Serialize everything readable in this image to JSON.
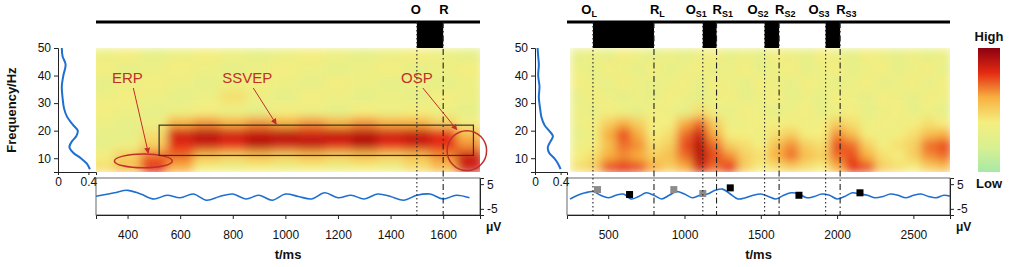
{
  "chart_data": [
    {
      "type": "heatmap",
      "xlabel": "t/ms",
      "ylabel": "Frequency/Hz",
      "xlim": [
        280,
        1740
      ],
      "xticks": [
        400,
        600,
        800,
        1000,
        1200,
        1400,
        1600
      ],
      "ylim": [
        5,
        50
      ],
      "yticks": [
        10,
        20,
        30,
        40,
        50
      ],
      "heatmap": {
        "x_edges": [
          250,
          350,
          450,
          550,
          650,
          750,
          850,
          950,
          1050,
          1150,
          1250,
          1350,
          1450,
          1550,
          1650,
          1750
        ],
        "y_edges": [
          5,
          9,
          13,
          17,
          21,
          25,
          30,
          35,
          40,
          45,
          50
        ],
        "values": [
          [
            0.45,
            0.55,
            0.8,
            0.6,
            0.4,
            0.35,
            0.4,
            0.35,
            0.4,
            0.35,
            0.4,
            0.35,
            0.45,
            0.55,
            0.85
          ],
          [
            0.4,
            0.5,
            0.7,
            0.7,
            0.55,
            0.5,
            0.55,
            0.5,
            0.55,
            0.5,
            0.55,
            0.5,
            0.55,
            0.65,
            0.85
          ],
          [
            0.3,
            0.35,
            0.5,
            0.8,
            0.85,
            0.8,
            0.9,
            0.85,
            0.88,
            0.82,
            0.9,
            0.8,
            0.85,
            0.8,
            0.65
          ],
          [
            0.3,
            0.3,
            0.45,
            0.85,
            0.9,
            0.85,
            0.88,
            0.9,
            0.85,
            0.88,
            0.9,
            0.85,
            0.88,
            0.8,
            0.55
          ],
          [
            0.35,
            0.3,
            0.35,
            0.6,
            0.65,
            0.6,
            0.65,
            0.6,
            0.65,
            0.6,
            0.65,
            0.6,
            0.6,
            0.5,
            0.4
          ],
          [
            0.4,
            0.35,
            0.3,
            0.35,
            0.4,
            0.35,
            0.3,
            0.4,
            0.35,
            0.3,
            0.4,
            0.35,
            0.4,
            0.35,
            0.3
          ],
          [
            0.35,
            0.4,
            0.35,
            0.3,
            0.35,
            0.45,
            0.35,
            0.3,
            0.4,
            0.35,
            0.3,
            0.35,
            0.3,
            0.4,
            0.35
          ],
          [
            0.3,
            0.35,
            0.4,
            0.35,
            0.3,
            0.35,
            0.4,
            0.35,
            0.3,
            0.4,
            0.35,
            0.3,
            0.35,
            0.3,
            0.35
          ],
          [
            0.4,
            0.3,
            0.35,
            0.4,
            0.35,
            0.3,
            0.35,
            0.4,
            0.35,
            0.3,
            0.35,
            0.4,
            0.3,
            0.35,
            0.4
          ],
          [
            0.35,
            0.4,
            0.3,
            0.35,
            0.4,
            0.35,
            0.3,
            0.35,
            0.4,
            0.35,
            0.3,
            0.35,
            0.4,
            0.35,
            0.3
          ]
        ]
      },
      "spectrum": {
        "type": "line",
        "color": "#1f6fd0",
        "xlim": [
          0,
          0.5
        ],
        "xticks": [
          0,
          0.4
        ],
        "f": [
          6,
          8,
          10,
          12,
          14,
          16,
          18,
          20,
          22,
          25,
          28,
          32,
          36,
          40,
          44,
          47,
          50
        ],
        "values": [
          0.42,
          0.38,
          0.3,
          0.2,
          0.15,
          0.18,
          0.24,
          0.26,
          0.2,
          0.12,
          0.08,
          0.06,
          0.05,
          0.07,
          0.1,
          0.06,
          0.05
        ]
      },
      "signal": {
        "type": "line",
        "color": "#1f6fd0",
        "unit": "μV",
        "ylim": [
          -7.5,
          7.5
        ],
        "yticks": [
          5,
          -5
        ],
        "x": [
          250,
          300,
          350,
          400,
          450,
          500,
          550,
          600,
          650,
          700,
          750,
          800,
          850,
          900,
          950,
          1000,
          1050,
          1100,
          1150,
          1200,
          1250,
          1300,
          1350,
          1400,
          1450,
          1500,
          1550,
          1600,
          1650,
          1700
        ],
        "values": [
          -0.5,
          0.5,
          1.5,
          2.5,
          1,
          -1,
          0.5,
          -0.5,
          1,
          -1.5,
          0,
          1,
          -1,
          0.5,
          -1.5,
          1,
          0,
          -1,
          1.5,
          -0.5,
          0.5,
          -1,
          1,
          0,
          -1.5,
          0.5,
          1,
          -1,
          0.5,
          -0.5
        ],
        "markers": []
      },
      "events": [
        {
          "label": "O",
          "t": 1500,
          "line_style": "dotted"
        },
        {
          "label": "R",
          "t": 1600,
          "line_style": "dashdot"
        }
      ],
      "blocks": [
        [
          1500,
          1600
        ]
      ],
      "annotations": [
        {
          "text": "ERP",
          "shape": "ellipse",
          "color": "#c0302a",
          "t": [
            350,
            570
          ],
          "f": [
            6.5,
            11.5
          ]
        },
        {
          "text": "SSVEP",
          "shape": "rect",
          "color": "#c0302a",
          "t": [
            520,
            1715
          ],
          "f": [
            11,
            22
          ]
        },
        {
          "text": "OSP",
          "shape": "ellipse",
          "color": "#c0302a",
          "t": [
            1615,
            1765
          ],
          "f": [
            5.5,
            20
          ]
        }
      ]
    },
    {
      "type": "heatmap",
      "xlabel": "t/ms",
      "xlim": [
        230,
        2740
      ],
      "xticks": [
        500,
        1000,
        1500,
        2000,
        2500
      ],
      "ylim": [
        5,
        50
      ],
      "yticks": [
        10,
        20,
        30,
        40,
        50
      ],
      "heatmap": {
        "x_edges": [
          250,
          350,
          450,
          550,
          650,
          750,
          850,
          950,
          1050,
          1150,
          1250,
          1350,
          1450,
          1550,
          1650,
          1750,
          1850,
          1950,
          2050,
          2150,
          2250,
          2350,
          2450,
          2550,
          2650,
          2750
        ],
        "y_edges": [
          5,
          9,
          13,
          17,
          21,
          25,
          30,
          35,
          40,
          45,
          50
        ],
        "values": [
          [
            0.45,
            0.5,
            0.75,
            0.8,
            0.75,
            0.6,
            0.5,
            0.6,
            0.85,
            0.7,
            0.8,
            0.5,
            0.4,
            0.45,
            0.5,
            0.45,
            0.4,
            0.6,
            0.8,
            0.75,
            0.5,
            0.45,
            0.4,
            0.5,
            0.55
          ],
          [
            0.4,
            0.45,
            0.6,
            0.65,
            0.6,
            0.5,
            0.55,
            0.7,
            0.9,
            0.75,
            0.65,
            0.5,
            0.45,
            0.6,
            0.7,
            0.55,
            0.5,
            0.7,
            0.75,
            0.6,
            0.45,
            0.4,
            0.5,
            0.65,
            0.7
          ],
          [
            0.35,
            0.4,
            0.55,
            0.7,
            0.65,
            0.45,
            0.5,
            0.75,
            0.9,
            0.7,
            0.5,
            0.45,
            0.4,
            0.55,
            0.65,
            0.5,
            0.45,
            0.75,
            0.7,
            0.5,
            0.4,
            0.45,
            0.5,
            0.7,
            0.75
          ],
          [
            0.3,
            0.35,
            0.6,
            0.75,
            0.6,
            0.4,
            0.45,
            0.7,
            0.85,
            0.6,
            0.4,
            0.4,
            0.35,
            0.45,
            0.5,
            0.4,
            0.4,
            0.65,
            0.55,
            0.4,
            0.35,
            0.4,
            0.45,
            0.55,
            0.6
          ],
          [
            0.35,
            0.4,
            0.5,
            0.6,
            0.5,
            0.4,
            0.4,
            0.6,
            0.7,
            0.5,
            0.35,
            0.35,
            0.4,
            0.4,
            0.4,
            0.35,
            0.4,
            0.5,
            0.45,
            0.35,
            0.4,
            0.35,
            0.4,
            0.45,
            0.4
          ],
          [
            0.35,
            0.3,
            0.4,
            0.35,
            0.3,
            0.4,
            0.35,
            0.3,
            0.45,
            0.35,
            0.3,
            0.4,
            0.35,
            0.3,
            0.35,
            0.4,
            0.3,
            0.35,
            0.4,
            0.3,
            0.35,
            0.4,
            0.3,
            0.35,
            0.3
          ],
          [
            0.3,
            0.4,
            0.35,
            0.3,
            0.35,
            0.3,
            0.4,
            0.35,
            0.3,
            0.35,
            0.4,
            0.3,
            0.35,
            0.4,
            0.3,
            0.35,
            0.3,
            0.4,
            0.35,
            0.3,
            0.4,
            0.35,
            0.3,
            0.4,
            0.35
          ],
          [
            0.4,
            0.35,
            0.3,
            0.4,
            0.35,
            0.3,
            0.35,
            0.4,
            0.3,
            0.4,
            0.35,
            0.3,
            0.4,
            0.35,
            0.3,
            0.4,
            0.35,
            0.3,
            0.35,
            0.4,
            0.3,
            0.35,
            0.4,
            0.3,
            0.4
          ],
          [
            0.35,
            0.3,
            0.4,
            0.35,
            0.3,
            0.4,
            0.3,
            0.35,
            0.4,
            0.3,
            0.35,
            0.4,
            0.3,
            0.35,
            0.4,
            0.3,
            0.35,
            0.4,
            0.3,
            0.35,
            0.4,
            0.3,
            0.35,
            0.4,
            0.3
          ],
          [
            0.3,
            0.35,
            0.3,
            0.4,
            0.35,
            0.3,
            0.35,
            0.3,
            0.35,
            0.4,
            0.3,
            0.35,
            0.3,
            0.4,
            0.35,
            0.3,
            0.4,
            0.35,
            0.3,
            0.4,
            0.35,
            0.3,
            0.35,
            0.3,
            0.35
          ]
        ]
      },
      "spectrum": {
        "type": "line",
        "color": "#1f6fd0",
        "xlim": [
          0,
          0.5
        ],
        "xticks": [
          0,
          0.4
        ],
        "f": [
          6,
          8,
          10,
          12,
          14,
          16,
          18,
          20,
          22,
          25,
          28,
          32,
          36,
          40,
          44,
          47,
          50
        ],
        "values": [
          0.4,
          0.36,
          0.3,
          0.22,
          0.2,
          0.24,
          0.28,
          0.22,
          0.15,
          0.1,
          0.08,
          0.06,
          0.07,
          0.05,
          0.06,
          0.05,
          0.04
        ]
      },
      "signal": {
        "type": "line",
        "color": "#1f6fd0",
        "unit": "μV",
        "ylim": [
          -7.5,
          7.5
        ],
        "yticks": [
          5,
          -5
        ],
        "x": [
          250,
          300,
          350,
          400,
          450,
          500,
          550,
          600,
          650,
          700,
          750,
          800,
          850,
          900,
          950,
          1000,
          1050,
          1100,
          1150,
          1200,
          1250,
          1300,
          1350,
          1400,
          1450,
          1500,
          1550,
          1600,
          1650,
          1700,
          1750,
          1800,
          1850,
          1900,
          1950,
          2000,
          2050,
          2100,
          2150,
          2200,
          2250,
          2300,
          2350,
          2400,
          2450,
          2500,
          2550,
          2600,
          2650,
          2700,
          2750
        ],
        "values": [
          -1,
          0.5,
          1.5,
          2,
          0.5,
          -0.5,
          0.5,
          1,
          -1,
          0,
          1.5,
          0.5,
          -1,
          0.5,
          2,
          1,
          -0.5,
          0.5,
          1,
          2.5,
          3,
          1,
          -1,
          -0.5,
          0.5,
          1,
          0,
          -1,
          0.5,
          1.5,
          1,
          -0.5,
          0,
          1,
          0.5,
          -1,
          0,
          1.5,
          1,
          0.5,
          -0.5,
          0,
          1,
          0.5,
          -0.5,
          0.5,
          1,
          0,
          -0.5,
          0.5,
          0
        ],
        "markers": [
          {
            "color": "#8c8c8c",
            "marker": "square",
            "x": [
              430,
              930,
              1120
            ],
            "values": [
              2.8,
              2.8,
              1.2
            ]
          },
          {
            "color": "#000000",
            "marker": "square",
            "x": [
              640,
              1300,
              1750,
              2150
            ],
            "values": [
              0.8,
              3.5,
              0.5,
              1.5
            ]
          }
        ]
      },
      "events": [
        {
          "label": "O",
          "sub": "L",
          "t": 400,
          "line_style": "dotted"
        },
        {
          "label": "R",
          "sub": "L",
          "t": 800,
          "line_style": "dashdot"
        },
        {
          "label": "O",
          "sub": "S1",
          "t": 1120,
          "line_style": "dotted"
        },
        {
          "label": "R",
          "sub": "S1",
          "t": 1210,
          "line_style": "dashdot"
        },
        {
          "label": "O",
          "sub": "S2",
          "t": 1525,
          "line_style": "dotted"
        },
        {
          "label": "R",
          "sub": "S2",
          "t": 1620,
          "line_style": "dashdot"
        },
        {
          "label": "O",
          "sub": "S3",
          "t": 1925,
          "line_style": "dotted"
        },
        {
          "label": "R",
          "sub": "S3",
          "t": 2020,
          "line_style": "dashdot"
        }
      ],
      "blocks": [
        [
          400,
          800
        ],
        [
          1120,
          1210
        ],
        [
          1525,
          1620
        ],
        [
          1925,
          2020
        ]
      ],
      "annotations": []
    }
  ],
  "colorbar": {
    "range": [
      0,
      1
    ],
    "colors": [
      "#a8e8a8",
      "#d8f090",
      "#f4ee80",
      "#f8b040",
      "#e42a12",
      "#8c0010"
    ],
    "high": "High",
    "low": "Low"
  }
}
